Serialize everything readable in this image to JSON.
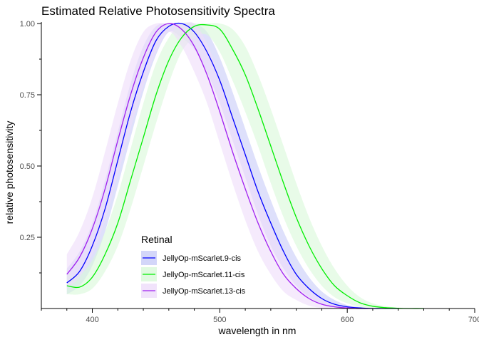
{
  "chart_data": {
    "type": "line",
    "title": "Estimated Relative Photosensitivity Spectra",
    "xlabel": "wavelength in nm",
    "ylabel": "relative photosensitivity",
    "xlim": [
      360,
      700
    ],
    "ylim": [
      0,
      1.0
    ],
    "x_ticks": [
      400,
      500,
      600,
      700
    ],
    "x_minor_ticks": [
      360,
      380,
      420,
      440,
      460,
      480,
      520,
      540,
      560,
      580,
      620,
      640,
      660,
      680
    ],
    "y_ticks": [
      0.25,
      0.5,
      0.75,
      1.0
    ],
    "y_tick_labels": [
      "0.25",
      "0.50",
      "0.75",
      "1.00"
    ],
    "grid": false,
    "legend": {
      "title": "Retinal",
      "position": "bottom-left"
    },
    "series": [
      {
        "name": "JellyOp-mScarlet.9-cis",
        "color": "#0000ff",
        "band_color": "#c8ccf8",
        "x": [
          380,
          390,
          400,
          410,
          420,
          430,
          440,
          450,
          460,
          470,
          480,
          490,
          500,
          510,
          520,
          530,
          540,
          550,
          560,
          570,
          580,
          590,
          600,
          610,
          620,
          630,
          640
        ],
        "y": [
          0.09,
          0.13,
          0.22,
          0.35,
          0.52,
          0.69,
          0.83,
          0.94,
          0.99,
          1.0,
          0.97,
          0.9,
          0.8,
          0.67,
          0.54,
          0.41,
          0.3,
          0.2,
          0.12,
          0.07,
          0.035,
          0.015,
          0.006,
          0.002,
          0.0,
          0.0,
          0.0
        ],
        "lower": [
          0.05,
          0.08,
          0.15,
          0.27,
          0.43,
          0.6,
          0.76,
          0.89,
          0.97,
          0.95,
          0.91,
          0.83,
          0.72,
          0.59,
          0.46,
          0.33,
          0.22,
          0.14,
          0.08,
          0.04,
          0.015,
          0.004,
          0.0,
          0.0,
          0.0,
          0.0,
          0.0
        ],
        "upper": [
          0.14,
          0.2,
          0.3,
          0.45,
          0.62,
          0.79,
          0.92,
          0.99,
          1.0,
          1.0,
          1.0,
          0.97,
          0.88,
          0.76,
          0.63,
          0.5,
          0.38,
          0.27,
          0.18,
          0.11,
          0.06,
          0.03,
          0.012,
          0.005,
          0.001,
          0.0,
          0.0
        ]
      },
      {
        "name": "JellyOp-mScarlet.11-cis",
        "color": "#00ee00",
        "band_color": "#d8f9d8",
        "x": [
          380,
          390,
          400,
          410,
          420,
          430,
          440,
          450,
          460,
          470,
          480,
          490,
          500,
          510,
          520,
          530,
          540,
          550,
          560,
          570,
          580,
          590,
          600,
          610,
          620,
          630,
          640,
          650,
          660
        ],
        "y": [
          0.08,
          0.075,
          0.11,
          0.19,
          0.3,
          0.45,
          0.6,
          0.75,
          0.87,
          0.95,
          0.99,
          0.995,
          0.98,
          0.91,
          0.82,
          0.7,
          0.57,
          0.44,
          0.32,
          0.22,
          0.14,
          0.08,
          0.045,
          0.02,
          0.008,
          0.003,
          0.001,
          0.0,
          0.0
        ],
        "lower": [
          0.05,
          0.05,
          0.07,
          0.13,
          0.22,
          0.35,
          0.5,
          0.65,
          0.79,
          0.9,
          0.95,
          0.96,
          0.9,
          0.8,
          0.69,
          0.57,
          0.44,
          0.32,
          0.22,
          0.14,
          0.08,
          0.04,
          0.018,
          0.006,
          0.0,
          0.0,
          0.0,
          0.0,
          0.0
        ],
        "upper": [
          0.12,
          0.12,
          0.17,
          0.27,
          0.4,
          0.56,
          0.72,
          0.86,
          0.95,
          1.0,
          1.0,
          1.0,
          1.0,
          0.98,
          0.92,
          0.82,
          0.7,
          0.57,
          0.44,
          0.32,
          0.22,
          0.14,
          0.08,
          0.04,
          0.018,
          0.008,
          0.003,
          0.001,
          0.0
        ]
      },
      {
        "name": "JellyOp-mScarlet.13-cis",
        "color": "#a020f0",
        "band_color": "#eedcfa",
        "x": [
          380,
          390,
          400,
          410,
          420,
          430,
          440,
          450,
          460,
          470,
          480,
          490,
          500,
          510,
          520,
          530,
          540,
          550,
          560,
          570,
          580,
          590,
          600,
          610,
          620
        ],
        "y": [
          0.12,
          0.18,
          0.28,
          0.42,
          0.59,
          0.75,
          0.88,
          0.97,
          1.0,
          0.98,
          0.92,
          0.82,
          0.69,
          0.55,
          0.42,
          0.3,
          0.2,
          0.12,
          0.07,
          0.035,
          0.015,
          0.006,
          0.002,
          0.0,
          0.0
        ],
        "lower": [
          0.07,
          0.11,
          0.19,
          0.31,
          0.47,
          0.63,
          0.78,
          0.9,
          0.97,
          0.92,
          0.83,
          0.72,
          0.58,
          0.44,
          0.31,
          0.2,
          0.12,
          0.06,
          0.03,
          0.01,
          0.002,
          0.0,
          0.0,
          0.0,
          0.0
        ],
        "upper": [
          0.19,
          0.27,
          0.39,
          0.55,
          0.72,
          0.87,
          0.97,
          1.0,
          1.0,
          1.0,
          1.0,
          0.93,
          0.81,
          0.67,
          0.54,
          0.41,
          0.29,
          0.19,
          0.12,
          0.07,
          0.035,
          0.015,
          0.006,
          0.002,
          0.0
        ]
      }
    ]
  }
}
